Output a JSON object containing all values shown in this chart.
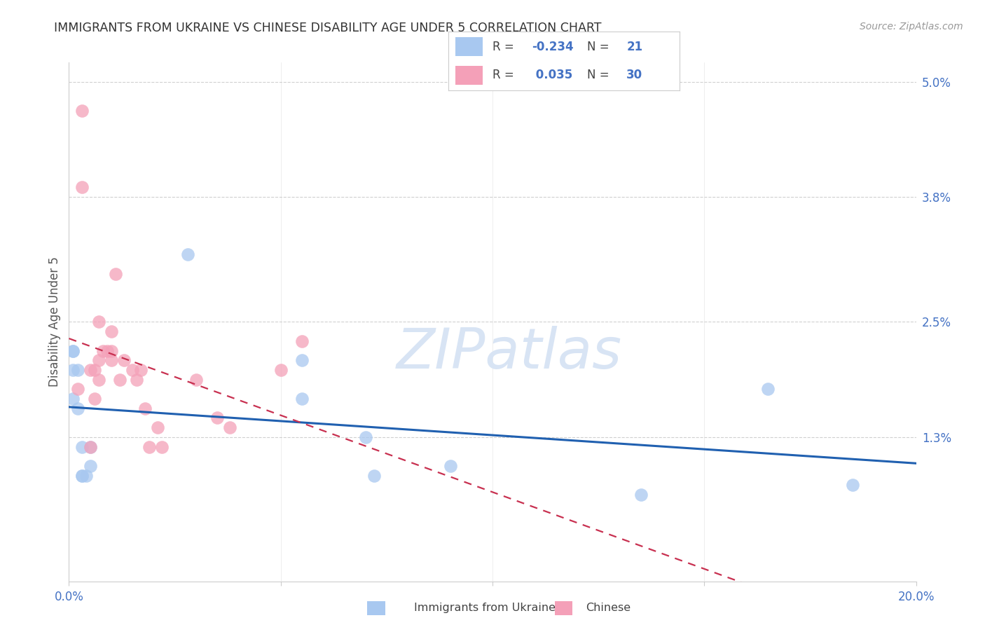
{
  "title": "IMMIGRANTS FROM UKRAINE VS CHINESE DISABILITY AGE UNDER 5 CORRELATION CHART",
  "source": "Source: ZipAtlas.com",
  "ylabel": "Disability Age Under 5",
  "xlim": [
    0.0,
    0.2
  ],
  "ylim": [
    -0.002,
    0.052
  ],
  "ytick_vals": [
    0.013,
    0.025,
    0.038,
    0.05
  ],
  "ytick_labels": [
    "1.3%",
    "2.5%",
    "3.8%",
    "5.0%"
  ],
  "xtick_vals": [
    0.0,
    0.05,
    0.1,
    0.15,
    0.2
  ],
  "xtick_labels": [
    "0.0%",
    "",
    "",
    "",
    "20.0%"
  ],
  "ukraine_R": -0.234,
  "ukraine_N": 21,
  "chinese_R": 0.035,
  "chinese_N": 30,
  "ukraine_color": "#A8C8F0",
  "chinese_color": "#F4A0B8",
  "ukraine_line_color": "#2060B0",
  "chinese_line_color": "#C83050",
  "background_color": "#FFFFFF",
  "grid_color": "#D0D0D0",
  "watermark_color": "#D8E4F4",
  "ukraine_x": [
    0.028,
    0.005,
    0.005,
    0.004,
    0.003,
    0.003,
    0.003,
    0.002,
    0.002,
    0.001,
    0.001,
    0.001,
    0.001,
    0.055,
    0.055,
    0.07,
    0.072,
    0.09,
    0.135,
    0.165,
    0.185
  ],
  "ukraine_y": [
    0.032,
    0.012,
    0.01,
    0.009,
    0.009,
    0.012,
    0.009,
    0.016,
    0.02,
    0.022,
    0.02,
    0.017,
    0.022,
    0.021,
    0.017,
    0.013,
    0.009,
    0.01,
    0.007,
    0.018,
    0.008
  ],
  "chinese_x": [
    0.002,
    0.003,
    0.003,
    0.005,
    0.005,
    0.006,
    0.006,
    0.007,
    0.007,
    0.007,
    0.008,
    0.009,
    0.01,
    0.01,
    0.01,
    0.011,
    0.012,
    0.013,
    0.015,
    0.016,
    0.017,
    0.018,
    0.019,
    0.021,
    0.022,
    0.03,
    0.035,
    0.038,
    0.05,
    0.055
  ],
  "chinese_y": [
    0.018,
    0.047,
    0.039,
    0.02,
    0.012,
    0.017,
    0.02,
    0.025,
    0.021,
    0.019,
    0.022,
    0.022,
    0.024,
    0.021,
    0.022,
    0.03,
    0.019,
    0.021,
    0.02,
    0.019,
    0.02,
    0.016,
    0.012,
    0.014,
    0.012,
    0.019,
    0.015,
    0.014,
    0.02,
    0.023
  ],
  "legend_bottom_labels": [
    "Immigrants from Ukraine",
    "Chinese"
  ]
}
